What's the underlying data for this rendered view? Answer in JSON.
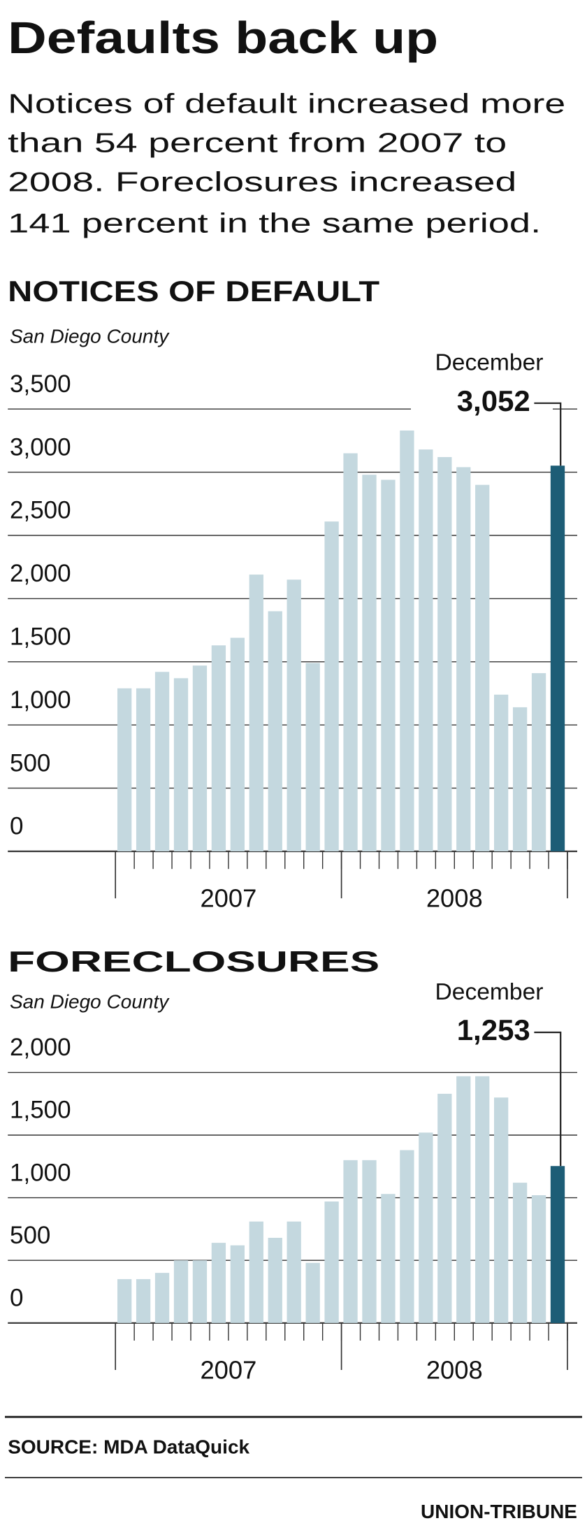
{
  "header": {
    "title": "Defaults back up",
    "subtitle": [
      "Notices of default increased more",
      "than 54 percent from 2007 to",
      "2008. Foreclosures increased",
      "141 percent in the same period."
    ]
  },
  "chart_data": [
    {
      "type": "bar",
      "title": "NOTICES OF DEFAULT",
      "subtitle": "San Diego County",
      "annotation": "December",
      "categories": [
        null,
        null,
        null,
        null,
        null,
        null,
        null,
        null,
        null,
        null,
        null,
        null,
        null,
        null,
        null,
        null,
        null,
        null,
        null,
        null,
        null,
        null,
        null,
        null
      ],
      "group_labels": [
        "2007",
        "2008"
      ],
      "values": [
        1290,
        1290,
        1420,
        1370,
        1470,
        1630,
        1690,
        2190,
        1900,
        2150,
        1490,
        2610,
        3150,
        2980,
        2940,
        3330,
        3180,
        3120,
        3040,
        2900,
        1240,
        1140,
        1410,
        3052
      ],
      "value_labels": [
        null,
        null,
        null,
        null,
        null,
        null,
        null,
        null,
        null,
        null,
        null,
        null,
        null,
        null,
        null,
        null,
        null,
        null,
        null,
        null,
        null,
        null,
        null,
        "3,052"
      ],
      "colors": [
        "#c4d8df",
        "#c4d8df",
        "#c4d8df",
        "#c4d8df",
        "#c4d8df",
        "#c4d8df",
        "#c4d8df",
        "#c4d8df",
        "#c4d8df",
        "#c4d8df",
        "#c4d8df",
        "#c4d8df",
        "#c4d8df",
        "#c4d8df",
        "#c4d8df",
        "#c4d8df",
        "#c4d8df",
        "#c4d8df",
        "#c4d8df",
        "#c4d8df",
        "#c4d8df",
        "#c4d8df",
        "#c4d8df",
        "#1d5d76"
      ],
      "ylim": [
        0,
        3500
      ],
      "yticks": [
        0,
        500,
        {
          "value": 1000,
          "label": "1,000"
        },
        {
          "value": 1500,
          "label": "1,500"
        },
        {
          "value": 2000,
          "label": "2,000"
        },
        {
          "value": 2500,
          "label": "2,500"
        },
        {
          "value": 3000,
          "label": "3,000"
        },
        {
          "value": 3500,
          "label": "3,500"
        }
      ],
      "grid": true
    },
    {
      "type": "bar",
      "title": "FORECLOSURES",
      "subtitle": "San Diego County",
      "annotation": "December",
      "categories": [
        null,
        null,
        null,
        null,
        null,
        null,
        null,
        null,
        null,
        null,
        null,
        null,
        null,
        null,
        null,
        null,
        null,
        null,
        null,
        null,
        null,
        null,
        null,
        null
      ],
      "group_labels": [
        "2007",
        "2008"
      ],
      "values": [
        350,
        350,
        400,
        500,
        500,
        640,
        620,
        810,
        680,
        810,
        480,
        970,
        1300,
        1300,
        1030,
        1380,
        1520,
        1830,
        1970,
        1970,
        1800,
        1120,
        1020,
        1253
      ],
      "value_labels": [
        null,
        null,
        null,
        null,
        null,
        null,
        null,
        null,
        null,
        null,
        null,
        null,
        null,
        null,
        null,
        null,
        null,
        null,
        null,
        null,
        null,
        null,
        null,
        "1,253"
      ],
      "colors": [
        "#c4d8df",
        "#c4d8df",
        "#c4d8df",
        "#c4d8df",
        "#c4d8df",
        "#c4d8df",
        "#c4d8df",
        "#c4d8df",
        "#c4d8df",
        "#c4d8df",
        "#c4d8df",
        "#c4d8df",
        "#c4d8df",
        "#c4d8df",
        "#c4d8df",
        "#c4d8df",
        "#c4d8df",
        "#c4d8df",
        "#c4d8df",
        "#c4d8df",
        "#c4d8df",
        "#c4d8df",
        "#c4d8df",
        "#1d5d76"
      ],
      "ylim": [
        0,
        2000
      ],
      "yticks": [
        0,
        500,
        {
          "value": 1000,
          "label": "1,000"
        },
        {
          "value": 1500,
          "label": "1,500"
        },
        {
          "value": 2000,
          "label": "2,000"
        }
      ],
      "grid": true
    }
  ],
  "footer": {
    "source": "SOURCE: MDA DataQuick",
    "credit": "UNION-TRIBUNE"
  }
}
